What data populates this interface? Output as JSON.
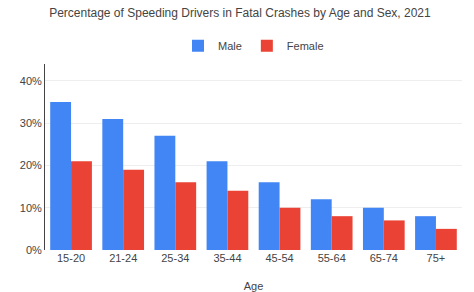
{
  "chart_data": {
    "type": "bar",
    "title": "Percentage of Speeding Drivers in Fatal Crashes by Age and Sex, 2021",
    "xlabel": "Age",
    "categories": [
      "15-20",
      "21-24",
      "25-34",
      "35-44",
      "45-54",
      "55-64",
      "65-74",
      "75+"
    ],
    "series": [
      {
        "name": "Male",
        "color": "#4285F4",
        "values": [
          35,
          31,
          27,
          21,
          16,
          12,
          10,
          8
        ]
      },
      {
        "name": "Female",
        "color": "#EA4335",
        "values": [
          21,
          19,
          16,
          14,
          10,
          8,
          7,
          5
        ]
      }
    ],
    "ylim": [
      0,
      44
    ],
    "yticks": [
      {
        "value": 0,
        "label": "0%"
      },
      {
        "value": 10,
        "label": "10%"
      },
      {
        "value": 20,
        "label": "20%"
      },
      {
        "value": 30,
        "label": "30%"
      },
      {
        "value": 40,
        "label": "40%"
      }
    ],
    "grid": true,
    "legend": "top"
  }
}
